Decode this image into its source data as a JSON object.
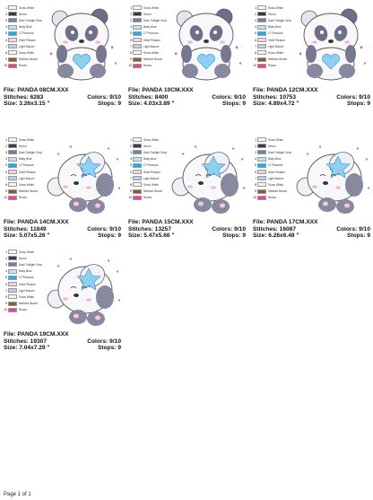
{
  "colors": [
    {
      "n": "1",
      "name": "Snow White",
      "hex": "#f6f6f6"
    },
    {
      "n": "2",
      "name": "Heron",
      "hex": "#3b3b45"
    },
    {
      "n": "3",
      "name": "Dark Twilight Grey",
      "hex": "#7d7d94"
    },
    {
      "n": "4",
      "name": "Baby Blue",
      "hex": "#bfe5f5"
    },
    {
      "n": "5",
      "name": "LT Peacock",
      "hex": "#2fa5e3"
    },
    {
      "n": "6",
      "name": "Shell Pleaser",
      "hex": "#f6d2dc"
    },
    {
      "n": "7",
      "name": "Light Mauve",
      "hex": "#c9c9e3"
    },
    {
      "n": "8",
      "name": "Snow White",
      "hex": "#f6f6f6"
    },
    {
      "n": "9",
      "name": "Medium Brown",
      "hex": "#8c5a36"
    },
    {
      "n": "10",
      "name": "Roses",
      "hex": "#ef3f8f"
    }
  ],
  "designs": [
    {
      "file": "File: PANDA 08CM.XXX",
      "stitches": "Stitches: 6283",
      "size": "Size: 3.26x3.15 \"",
      "colors": "Colors: 9/10",
      "stops": "Stops: 9",
      "pose": "heart"
    },
    {
      "file": "File: PANDA 10CM.XXX",
      "stitches": "Stitches: 8400",
      "size": "Size: 4.03x3.89 \"",
      "colors": "Colors: 9/10",
      "stops": "Stops: 9",
      "pose": "heart"
    },
    {
      "file": "File: PANDA 12CM.XXX",
      "stitches": "Stitches: 10753",
      "size": "Size: 4.89x4.72 \"",
      "colors": "Colors: 9/10",
      "stops": "Stops: 9",
      "pose": "heart"
    },
    {
      "file": "File: PANDA 14CM.XXX",
      "stitches": "Stitches: 11849",
      "size": "Size: 5.07x5.26 \"",
      "colors": "Colors: 9/10",
      "stops": "Stops: 9",
      "pose": "star"
    },
    {
      "file": "File: PANDA 15CM.XXX",
      "stitches": "Stitches: 13257",
      "size": "Size: 5.47x5.66 \"",
      "colors": "Colors: 9/10",
      "stops": "Stops: 9",
      "pose": "star"
    },
    {
      "file": "File: PANDA 17CM.XXX",
      "stitches": "Stitches: 16087",
      "size": "Size: 6.26x6.48 \"",
      "colors": "Colors: 9/10",
      "stops": "Stops: 9",
      "pose": "star"
    },
    {
      "file": "File: PANDA 19CM.XXX",
      "stitches": "Stitches: 19307",
      "size": "Size: 7.04x7.29 \"",
      "colors": "Colors: 9/10",
      "stops": "Stops: 9",
      "pose": "star"
    }
  ],
  "footer": "Page 1 of 1"
}
